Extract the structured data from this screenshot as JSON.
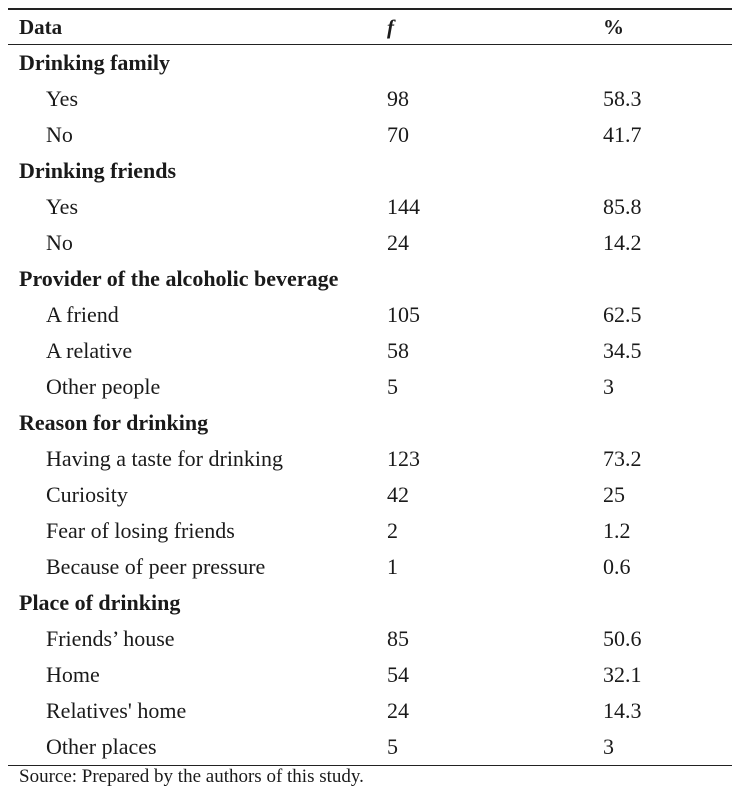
{
  "header": {
    "col_data": "Data",
    "col_f": "f",
    "col_pct": "%"
  },
  "sections": [
    {
      "title": "Drinking family",
      "rows": [
        {
          "label": "Yes",
          "f": "98",
          "pct": "58.3"
        },
        {
          "label": "No",
          "f": "70",
          "pct": "41.7"
        }
      ]
    },
    {
      "title": "Drinking friends",
      "rows": [
        {
          "label": "Yes",
          "f": "144",
          "pct": "85.8"
        },
        {
          "label": "No",
          "f": "24",
          "pct": "14.2"
        }
      ]
    },
    {
      "title": "Provider of the alcoholic beverage",
      "rows": [
        {
          "label": "A friend",
          "f": "105",
          "pct": "62.5"
        },
        {
          "label": "A relative",
          "f": "58",
          "pct": "34.5"
        },
        {
          "label": "Other people",
          "f": "5",
          "pct": "3"
        }
      ]
    },
    {
      "title": "Reason for drinking",
      "rows": [
        {
          "label": "Having a taste for drinking",
          "f": "123",
          "pct": "73.2"
        },
        {
          "label": "Curiosity",
          "f": "42",
          "pct": "25"
        },
        {
          "label": "Fear of losing friends",
          "f": "2",
          "pct": "1.2"
        },
        {
          "label": "Because of peer pressure",
          "f": "1",
          "pct": "0.6"
        }
      ]
    },
    {
      "title": "Place of drinking",
      "rows": [
        {
          "label": "Friends’ house",
          "f": "85",
          "pct": "50.6"
        },
        {
          "label": "Home",
          "f": "54",
          "pct": "32.1"
        },
        {
          "label": "Relatives' home",
          "f": "24",
          "pct": "14.3"
        },
        {
          "label": "Other places",
          "f": "5",
          "pct": "3"
        }
      ]
    }
  ],
  "source": "Source: Prepared by the authors of this study."
}
